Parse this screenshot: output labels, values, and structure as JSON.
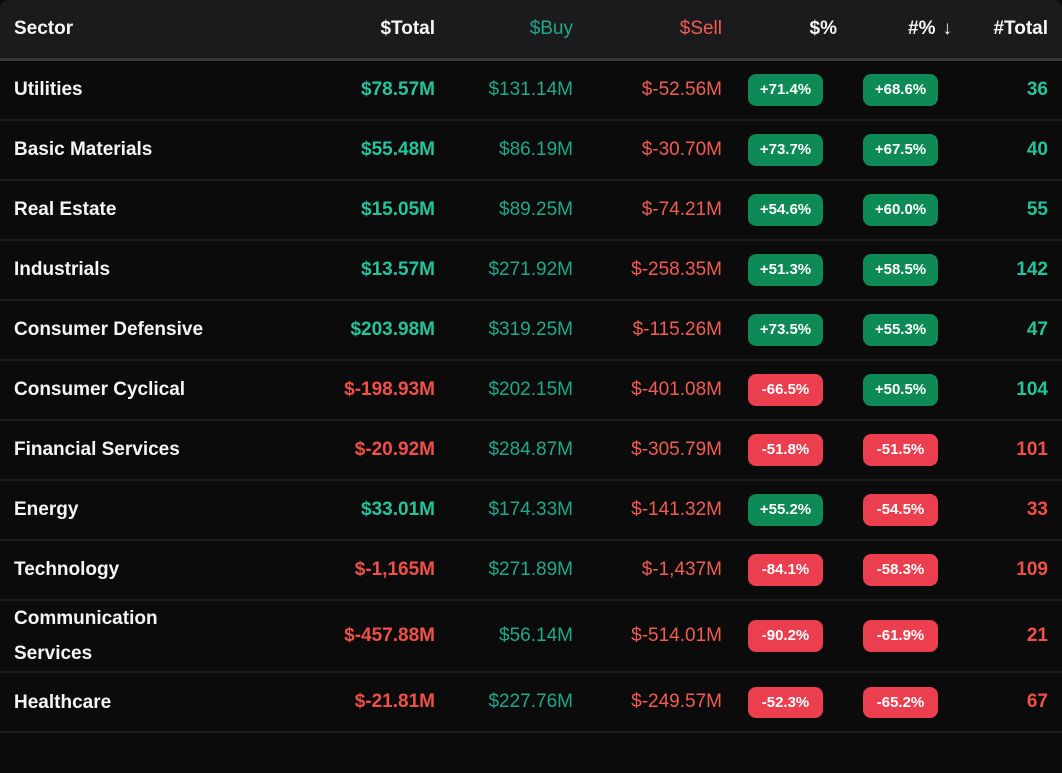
{
  "table": {
    "columns": [
      {
        "key": "sector",
        "label": "Sector"
      },
      {
        "key": "total",
        "label": "$Total"
      },
      {
        "key": "buy",
        "label": "$Buy"
      },
      {
        "key": "sell",
        "label": "$Sell"
      },
      {
        "key": "dollar_pct",
        "label": "$%"
      },
      {
        "key": "count_pct",
        "label": "#%",
        "sorted": "desc"
      },
      {
        "key": "count_total",
        "label": "#Total"
      }
    ],
    "sort_icon": "↓",
    "rows": [
      {
        "sector": "Utilities",
        "total": "$78.57M",
        "buy": "$131.14M",
        "sell": "$-52.56M",
        "dollar_pct": "+71.4%",
        "count_pct": "+68.6%",
        "count_total": "36"
      },
      {
        "sector": "Basic Materials",
        "total": "$55.48M",
        "buy": "$86.19M",
        "sell": "$-30.70M",
        "dollar_pct": "+73.7%",
        "count_pct": "+67.5%",
        "count_total": "40"
      },
      {
        "sector": "Real Estate",
        "total": "$15.05M",
        "buy": "$89.25M",
        "sell": "$-74.21M",
        "dollar_pct": "+54.6%",
        "count_pct": "+60.0%",
        "count_total": "55"
      },
      {
        "sector": "Industrials",
        "total": "$13.57M",
        "buy": "$271.92M",
        "sell": "$-258.35M",
        "dollar_pct": "+51.3%",
        "count_pct": "+58.5%",
        "count_total": "142"
      },
      {
        "sector": "Consumer Defensive",
        "total": "$203.98M",
        "buy": "$319.25M",
        "sell": "$-115.26M",
        "dollar_pct": "+73.5%",
        "count_pct": "+55.3%",
        "count_total": "47"
      },
      {
        "sector": "Consumer Cyclical",
        "total": "$-198.93M",
        "buy": "$202.15M",
        "sell": "$-401.08M",
        "dollar_pct": "-66.5%",
        "count_pct": "+50.5%",
        "count_total": "104"
      },
      {
        "sector": "Financial Services",
        "total": "$-20.92M",
        "buy": "$284.87M",
        "sell": "$-305.79M",
        "dollar_pct": "-51.8%",
        "count_pct": "-51.5%",
        "count_total": "101"
      },
      {
        "sector": "Energy",
        "total": "$33.01M",
        "buy": "$174.33M",
        "sell": "$-141.32M",
        "dollar_pct": "+55.2%",
        "count_pct": "-54.5%",
        "count_total": "33"
      },
      {
        "sector": "Technology",
        "total": "$-1,165M",
        "buy": "$271.89M",
        "sell": "$-1,437M",
        "dollar_pct": "-84.1%",
        "count_pct": "-58.3%",
        "count_total": "109"
      },
      {
        "sector": "Communication Services",
        "total": "$-457.88M",
        "buy": "$56.14M",
        "sell": "$-514.01M",
        "dollar_pct": "-90.2%",
        "count_pct": "-61.9%",
        "count_total": "21"
      },
      {
        "sector": "Healthcare",
        "total": "$-21.81M",
        "buy": "$227.76M",
        "sell": "$-249.57M",
        "dollar_pct": "-52.3%",
        "count_pct": "-65.2%",
        "count_total": "67"
      }
    ]
  },
  "colors": {
    "header-bg": "#1b1b1d",
    "row-bg": "#0b0b0c",
    "row-divider": "#1c1c1f",
    "header-divider": "#39393d",
    "text-primary": "#f5f5f5",
    "green-bold": "#23c49b",
    "green-buy": "#1ea98b",
    "red-bold": "#f05045",
    "red-sell": "#f15c52",
    "badge-green": "#0d8a55",
    "badge-red": "#eb3f4f",
    "badge-text": "#ffffff"
  }
}
